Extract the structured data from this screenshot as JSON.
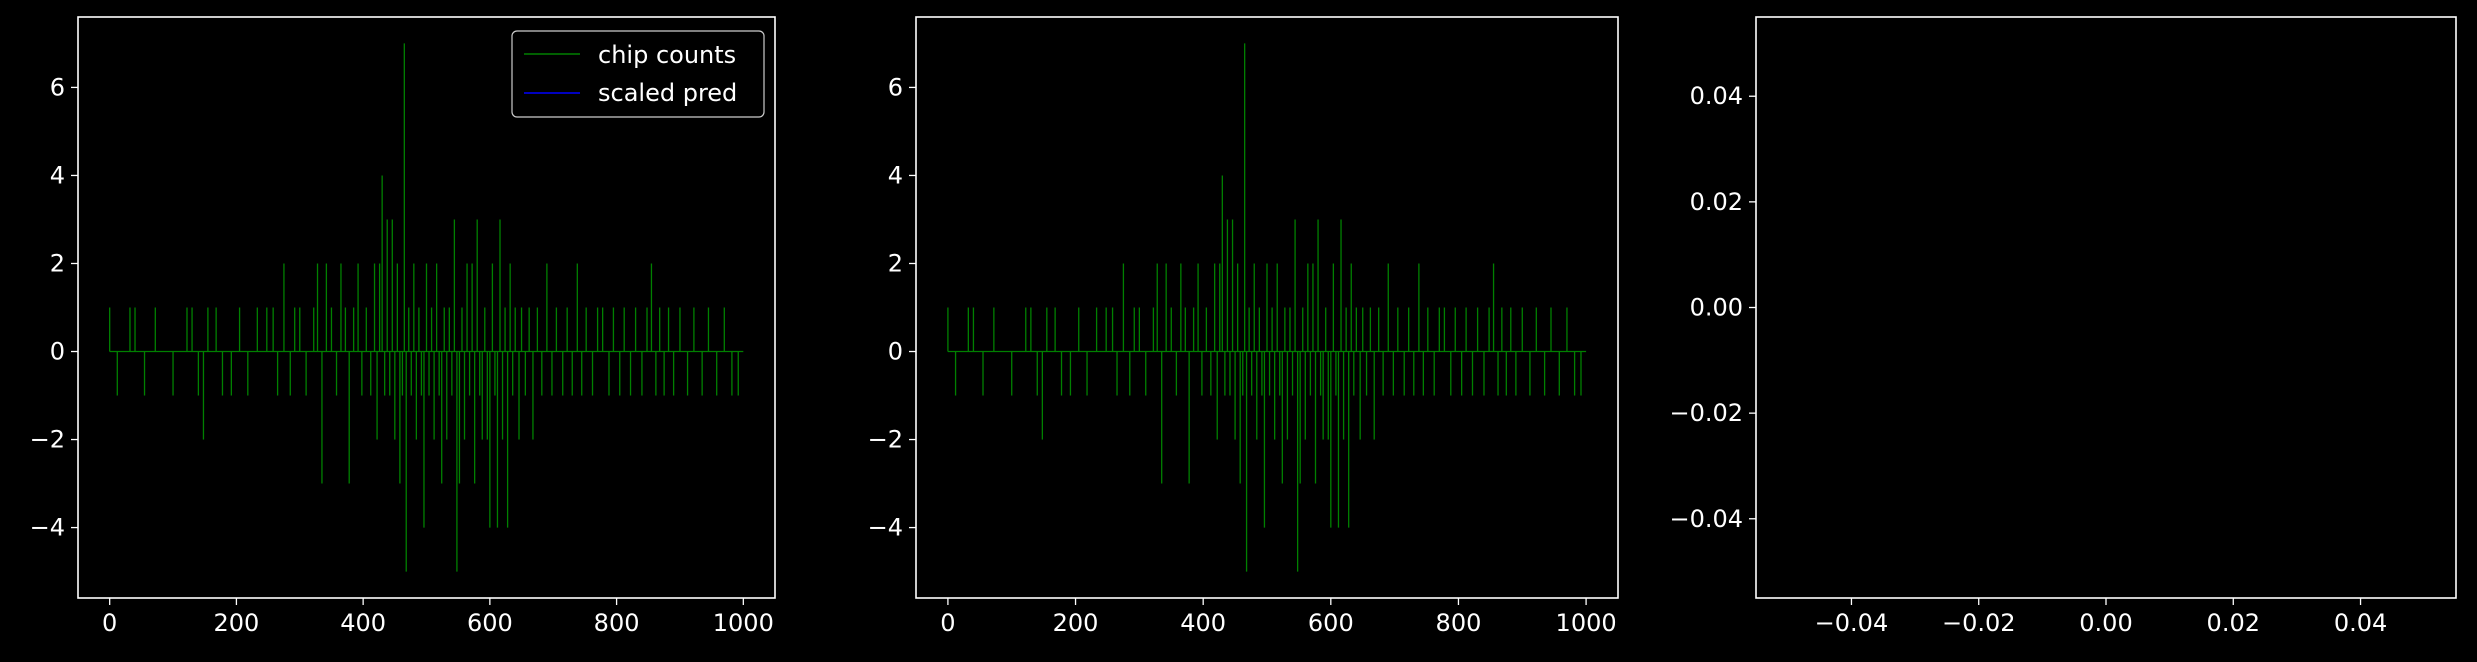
{
  "chart_data": [
    {
      "type": "line",
      "title": "",
      "xlabel": "",
      "ylabel": "",
      "xlim": [
        -50,
        1050
      ],
      "ylim": [
        -5.6,
        7.6
      ],
      "xticks": [
        0,
        200,
        400,
        600,
        800,
        1000
      ],
      "yticks": [
        -4,
        -2,
        0,
        2,
        4,
        6
      ],
      "xtick_labels": [
        "0",
        "200",
        "400",
        "600",
        "800",
        "1000"
      ],
      "ytick_labels": [
        "−4",
        "−2",
        "0",
        "2",
        "4",
        "6"
      ],
      "legend": {
        "placement": "top-right",
        "entries": [
          {
            "label": "chip counts",
            "color": "#008000"
          },
          {
            "label": "scaled pred",
            "color": "#0000ff"
          }
        ]
      },
      "series": [
        {
          "name": "chip counts",
          "color": "#008000",
          "spikes": [
            [
              0,
              1
            ],
            [
              12,
              -1
            ],
            [
              32,
              1
            ],
            [
              40,
              1
            ],
            [
              55,
              -1
            ],
            [
              72,
              1
            ],
            [
              100,
              -1
            ],
            [
              122,
              1
            ],
            [
              130,
              1
            ],
            [
              140,
              -1
            ],
            [
              148,
              -2
            ],
            [
              155,
              1
            ],
            [
              168,
              1
            ],
            [
              178,
              -1
            ],
            [
              192,
              -1
            ],
            [
              205,
              1
            ],
            [
              218,
              -1
            ],
            [
              233,
              1
            ],
            [
              248,
              1
            ],
            [
              258,
              1
            ],
            [
              265,
              -1
            ],
            [
              275,
              2
            ],
            [
              285,
              -1
            ],
            [
              292,
              1
            ],
            [
              300,
              1
            ],
            [
              310,
              -1
            ],
            [
              322,
              1
            ],
            [
              328,
              2
            ],
            [
              335,
              -3
            ],
            [
              342,
              2
            ],
            [
              350,
              1
            ],
            [
              358,
              -1
            ],
            [
              365,
              2
            ],
            [
              372,
              1
            ],
            [
              378,
              -3
            ],
            [
              385,
              1
            ],
            [
              392,
              2
            ],
            [
              398,
              -1
            ],
            [
              405,
              1
            ],
            [
              412,
              -1
            ],
            [
              418,
              2
            ],
            [
              422,
              -2
            ],
            [
              426,
              2
            ],
            [
              430,
              4
            ],
            [
              434,
              -1
            ],
            [
              438,
              3
            ],
            [
              442,
              -1
            ],
            [
              446,
              3
            ],
            [
              450,
              -2
            ],
            [
              454,
              2
            ],
            [
              458,
              -3
            ],
            [
              462,
              -1
            ],
            [
              465,
              7
            ],
            [
              468,
              -5
            ],
            [
              472,
              1
            ],
            [
              476,
              -1
            ],
            [
              480,
              2
            ],
            [
              484,
              -2
            ],
            [
              488,
              1
            ],
            [
              492,
              -1
            ],
            [
              496,
              -4
            ],
            [
              500,
              2
            ],
            [
              504,
              -1
            ],
            [
              508,
              1
            ],
            [
              512,
              -2
            ],
            [
              516,
              2
            ],
            [
              520,
              -1
            ],
            [
              524,
              -3
            ],
            [
              528,
              1
            ],
            [
              532,
              -2
            ],
            [
              536,
              1
            ],
            [
              540,
              -1
            ],
            [
              544,
              3
            ],
            [
              548,
              -5
            ],
            [
              552,
              -3
            ],
            [
              556,
              1
            ],
            [
              560,
              -2
            ],
            [
              564,
              2
            ],
            [
              568,
              -1
            ],
            [
              572,
              2
            ],
            [
              576,
              -3
            ],
            [
              580,
              3
            ],
            [
              584,
              -1
            ],
            [
              588,
              -2
            ],
            [
              592,
              1
            ],
            [
              596,
              -2
            ],
            [
              600,
              -4
            ],
            [
              604,
              2
            ],
            [
              608,
              -1
            ],
            [
              612,
              -4
            ],
            [
              616,
              3
            ],
            [
              620,
              -2
            ],
            [
              624,
              1
            ],
            [
              628,
              -4
            ],
            [
              632,
              2
            ],
            [
              636,
              -1
            ],
            [
              640,
              1
            ],
            [
              646,
              -2
            ],
            [
              650,
              1
            ],
            [
              656,
              -1
            ],
            [
              662,
              1
            ],
            [
              668,
              -2
            ],
            [
              675,
              1
            ],
            [
              682,
              -1
            ],
            [
              690,
              2
            ],
            [
              698,
              -1
            ],
            [
              705,
              1
            ],
            [
              715,
              -1
            ],
            [
              722,
              1
            ],
            [
              730,
              -1
            ],
            [
              738,
              2
            ],
            [
              745,
              -1
            ],
            [
              752,
              1
            ],
            [
              762,
              -1
            ],
            [
              770,
              1
            ],
            [
              778,
              1
            ],
            [
              788,
              -1
            ],
            [
              795,
              1
            ],
            [
              805,
              -1
            ],
            [
              812,
              1
            ],
            [
              822,
              -1
            ],
            [
              830,
              1
            ],
            [
              840,
              -1
            ],
            [
              848,
              1
            ],
            [
              855,
              2
            ],
            [
              862,
              -1
            ],
            [
              868,
              1
            ],
            [
              875,
              -1
            ],
            [
              882,
              1
            ],
            [
              890,
              -1
            ],
            [
              900,
              1
            ],
            [
              912,
              -1
            ],
            [
              922,
              1
            ],
            [
              935,
              -1
            ],
            [
              945,
              1
            ],
            [
              958,
              -1
            ],
            [
              970,
              1
            ],
            [
              982,
              -1
            ],
            [
              992,
              -1
            ]
          ]
        },
        {
          "name": "scaled pred",
          "color": "#0000ff",
          "spikes": []
        }
      ]
    },
    {
      "type": "line",
      "title": "",
      "xlabel": "",
      "ylabel": "",
      "xlim": [
        -50,
        1050
      ],
      "ylim": [
        -5.6,
        7.6
      ],
      "xticks": [
        0,
        200,
        400,
        600,
        800,
        1000
      ],
      "yticks": [
        -4,
        -2,
        0,
        2,
        4,
        6
      ],
      "xtick_labels": [
        "0",
        "200",
        "400",
        "600",
        "800",
        "1000"
      ],
      "ytick_labels": [
        "−4",
        "−2",
        "0",
        "2",
        "4",
        "6"
      ],
      "series": [
        {
          "color": "#008000",
          "spikes": "same-as-panel-1"
        }
      ]
    },
    {
      "type": "line",
      "title": "",
      "xlabel": "",
      "ylabel": "",
      "xlim": [
        -0.055,
        0.055
      ],
      "ylim": [
        -0.055,
        0.055
      ],
      "xticks": [
        -0.04,
        -0.02,
        0.0,
        0.02,
        0.04
      ],
      "yticks": [
        -0.04,
        -0.02,
        0.0,
        0.02,
        0.04
      ],
      "xtick_labels": [
        "−0.04",
        "−0.02",
        "0.00",
        "0.02",
        "0.04"
      ],
      "ytick_labels": [
        "−0.04",
        "−0.02",
        "0.00",
        "0.02",
        "0.04"
      ],
      "series": []
    }
  ]
}
